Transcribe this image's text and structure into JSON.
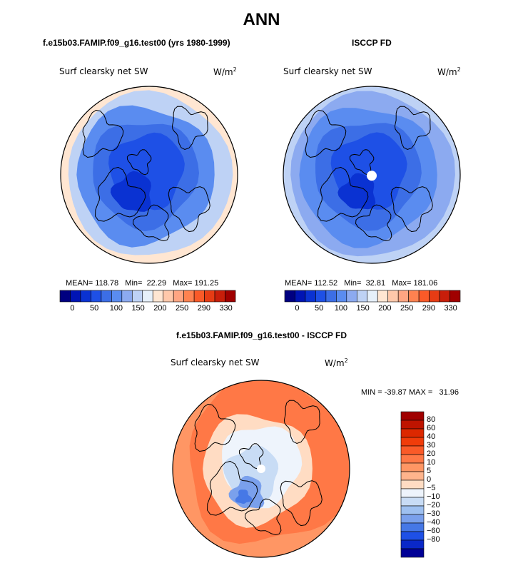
{
  "title": "ANN",
  "panels": [
    {
      "id": "model",
      "case_title": "f.e15b03.FAMIP.f09_g16.test00 (yrs 1980-1999)",
      "variable": "Surf clearsky net SW",
      "units_base": "W/m",
      "units_exp": "2",
      "mean_label": "MEAN=",
      "mean": "118.78",
      "min_label": "Min=",
      "min": "22.29",
      "max_label": "Max=",
      "max": "191.25"
    },
    {
      "id": "obs",
      "case_title": "ISCCP FD",
      "variable": "Surf clearsky net SW",
      "units_base": "W/m",
      "units_exp": "2",
      "mean_label": "MEAN=",
      "mean": "112.52",
      "min_label": "Min=",
      "min": "32.81",
      "max_label": "Max=",
      "max": "181.06"
    }
  ],
  "diff": {
    "title": "f.e15b03.FAMIP.f09_g16.test00 - ISCCP FD",
    "variable": "Surf clearsky net SW",
    "units_base": "W/m",
    "units_exp": "2",
    "min_label": "MIN =",
    "min": "-39.87",
    "max_label": "MAX =",
    "max": "31.96"
  },
  "chart_data": [
    {
      "type": "heatmap",
      "projection": "polar-stereographic-north",
      "title": "f.e15b03.FAMIP.f09_g16.test00 (yrs 1980-1999)",
      "colorbar": {
        "orientation": "horizontal",
        "tick_labels": [
          "0",
          "50",
          "100",
          "150",
          "200",
          "250",
          "290",
          "330"
        ],
        "colors": [
          "#000080",
          "#0014b4",
          "#0a32d2",
          "#1e50e6",
          "#3c6ee6",
          "#5a8cf0",
          "#8caaf0",
          "#bed2f5",
          "#e6f0fa",
          "#ffe6d2",
          "#ffc8aa",
          "#ffa582",
          "#ff8250",
          "#fa5a28",
          "#e63c14",
          "#c81e0a",
          "#a00000"
        ]
      },
      "colors": {
        "land_outline": "#000000",
        "outer_ring": "#ffe6d2"
      }
    },
    {
      "type": "heatmap",
      "projection": "polar-stereographic-north",
      "title": "ISCCP FD",
      "colorbar": {
        "orientation": "horizontal",
        "tick_labels": [
          "0",
          "50",
          "100",
          "150",
          "200",
          "250",
          "290",
          "330"
        ],
        "colors": [
          "#000080",
          "#0014b4",
          "#0a32d2",
          "#1e50e6",
          "#3c6ee6",
          "#5a8cf0",
          "#8caaf0",
          "#bed2f5",
          "#e6f0fa",
          "#ffe6d2",
          "#ffc8aa",
          "#ffa582",
          "#ff8250",
          "#fa5a28",
          "#e63c14",
          "#c81e0a",
          "#a00000"
        ]
      },
      "colors": {
        "land_outline": "#000000",
        "missing": "#ffffff"
      }
    },
    {
      "type": "heatmap",
      "projection": "polar-stereographic-north",
      "title": "f.e15b03.FAMIP.f09_g16.test00 - ISCCP FD",
      "colorbar": {
        "orientation": "vertical",
        "tick_labels": [
          "80",
          "60",
          "40",
          "30",
          "20",
          "10",
          "5",
          "0",
          "−5",
          "−10",
          "−20",
          "−30",
          "−40",
          "−60",
          "−80"
        ],
        "colors": [
          "#a00000",
          "#be1400",
          "#dc2800",
          "#f03c0a",
          "#fa5a28",
          "#ff7846",
          "#ff9664",
          "#ffb48c",
          "#ffdcc3",
          "#eef4fc",
          "#c8dcf5",
          "#9ec0f0",
          "#7aa0ec",
          "#4678e6",
          "#1e50e6",
          "#0a28c8",
          "#000096"
        ]
      },
      "colors": {
        "land_outline": "#000000",
        "missing": "#ffffff"
      }
    }
  ]
}
